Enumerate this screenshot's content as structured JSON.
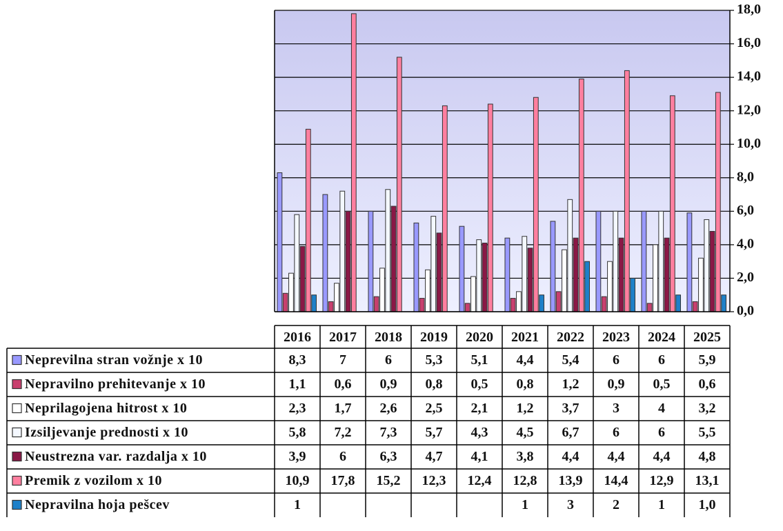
{
  "chart_data": {
    "type": "bar",
    "categories": [
      "2016",
      "2017",
      "2018",
      "2019",
      "2020",
      "2021",
      "2022",
      "2023",
      "2024",
      "2025"
    ],
    "series": [
      {
        "name": "Neprevilna stran vožnje x 10",
        "color": "#9999ff",
        "values": [
          8.3,
          7,
          6,
          5.3,
          5.1,
          4.4,
          5.4,
          6,
          6,
          5.9
        ],
        "value_labels": [
          "8,3",
          "7",
          "6",
          "5,3",
          "5,1",
          "4,4",
          "5,4",
          "6",
          "6",
          "5,9"
        ]
      },
      {
        "name": "Nepravilno prehitevanje x 10",
        "color": "#c8406e",
        "values": [
          1.1,
          0.6,
          0.9,
          0.8,
          0.5,
          0.8,
          1.2,
          0.9,
          0.5,
          0.6
        ],
        "value_labels": [
          "1,1",
          "0,6",
          "0,9",
          "0,8",
          "0,5",
          "0,8",
          "1,2",
          "0,9",
          "0,5",
          "0,6"
        ]
      },
      {
        "name": "Neprilagojena hitrost x 10",
        "color": "#ffffff",
        "values": [
          2.3,
          1.7,
          2.6,
          2.5,
          2.1,
          1.2,
          3.7,
          3,
          4,
          3.2
        ],
        "value_labels": [
          "2,3",
          "1,7",
          "2,6",
          "2,5",
          "2,1",
          "1,2",
          "3,7",
          "3",
          "4",
          "3,2"
        ]
      },
      {
        "name": "Izsiljevanje prednosti x 10",
        "color": "#f4f8ff",
        "values": [
          5.8,
          7.2,
          7.3,
          5.7,
          4.3,
          4.5,
          6.7,
          6,
          6,
          5.5
        ],
        "value_labels": [
          "5,8",
          "7,2",
          "7,3",
          "5,7",
          "4,3",
          "4,5",
          "6,7",
          "6",
          "6",
          "5,5"
        ]
      },
      {
        "name": "Neustrezna var. razdalja x 10",
        "color": "#8a1846",
        "values": [
          3.9,
          6,
          6.3,
          4.7,
          4.1,
          3.8,
          4.4,
          4.4,
          4.4,
          4.8
        ],
        "value_labels": [
          "3,9",
          "6",
          "6,3",
          "4,7",
          "4,1",
          "3,8",
          "4,4",
          "4,4",
          "4,4",
          "4,8"
        ]
      },
      {
        "name": "Premik z vozilom x 10",
        "color": "#ff7f9f",
        "values": [
          10.9,
          17.8,
          15.2,
          12.3,
          12.4,
          12.8,
          13.9,
          14.4,
          12.9,
          13.1
        ],
        "value_labels": [
          "10,9",
          "17,8",
          "15,2",
          "12,3",
          "12,4",
          "12,8",
          "13,9",
          "14,4",
          "12,9",
          "13,1"
        ]
      },
      {
        "name": "Nepravilna hoja pešcev",
        "color": "#1e80c8",
        "values": [
          1,
          null,
          null,
          null,
          null,
          1,
          3,
          2,
          1,
          1.0
        ],
        "value_labels": [
          "1",
          null,
          null,
          null,
          null,
          "1",
          "3",
          "2",
          "1",
          "1,0"
        ]
      }
    ],
    "ylim": [
      0,
      18
    ],
    "yticks": [
      {
        "value": 0,
        "label": "0,0"
      },
      {
        "value": 2,
        "label": "2,0"
      },
      {
        "value": 4,
        "label": "4,0"
      },
      {
        "value": 6,
        "label": "6,0"
      },
      {
        "value": 8,
        "label": "8,0"
      },
      {
        "value": 10,
        "label": "10,0"
      },
      {
        "value": 12,
        "label": "12,0"
      },
      {
        "value": 14,
        "label": "14,0"
      },
      {
        "value": 16,
        "label": "16,0"
      },
      {
        "value": 18,
        "label": "18,0"
      }
    ],
    "grid": true
  }
}
